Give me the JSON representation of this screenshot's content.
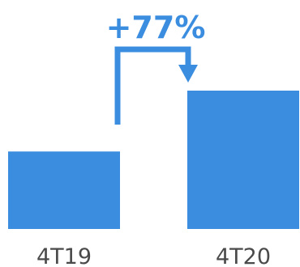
{
  "chart_data": {
    "type": "bar",
    "categories": [
      "4T19",
      "4T20"
    ],
    "values": [
      56,
      100
    ],
    "annotation": "+77%",
    "colors": {
      "bar": "#3b8de0",
      "arrow": "#3b8de0",
      "annotation": "#3b8de0",
      "category_text": "#4a4a4a"
    },
    "grid": false,
    "axes_visible": false,
    "ylim": [
      0,
      100
    ]
  }
}
